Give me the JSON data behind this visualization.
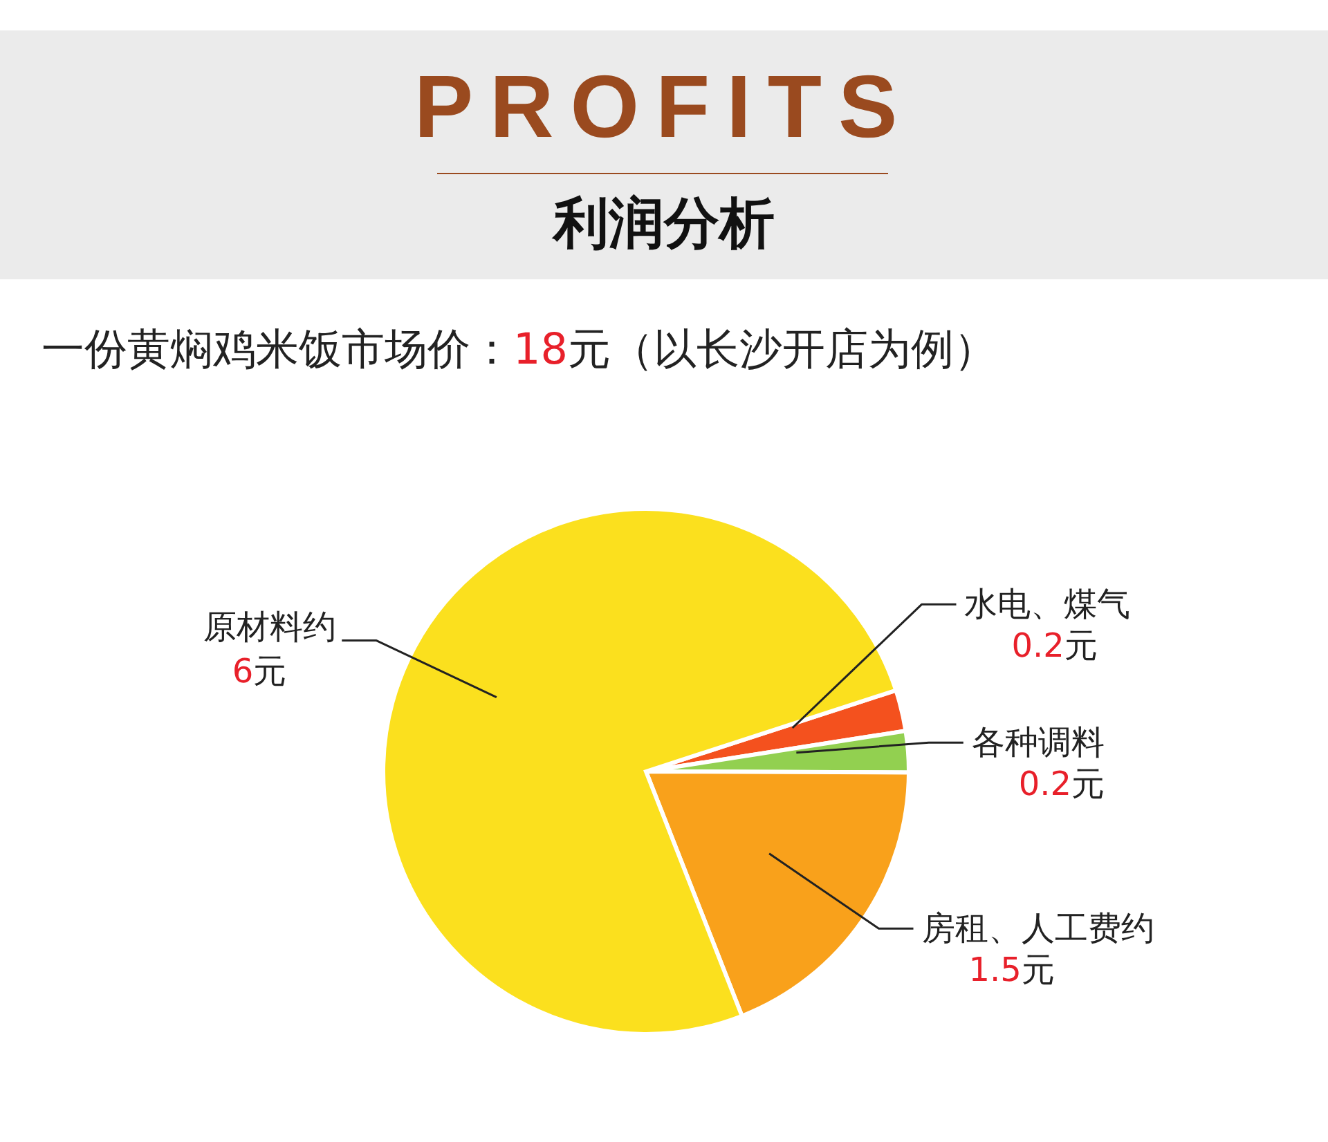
{
  "chart_data": {
    "type": "pie",
    "title": "PROFITS",
    "subtitle": "利润分析",
    "annotations": [
      "一份黄焖鸡米饭市场价：18元（以长沙开店为例）"
    ],
    "categories": [
      "水电、煤气",
      "各种调料",
      "房租、人工费约",
      "原材料约"
    ],
    "values": [
      0.2,
      0.2,
      1.5,
      6
    ],
    "colors": [
      "#f4511e",
      "#92d050",
      "#f9a11b",
      "#fbe01e"
    ],
    "value_labels": [
      "0.2元",
      "0.2元",
      "1.5元",
      "6元"
    ],
    "legend": false
  }
}
